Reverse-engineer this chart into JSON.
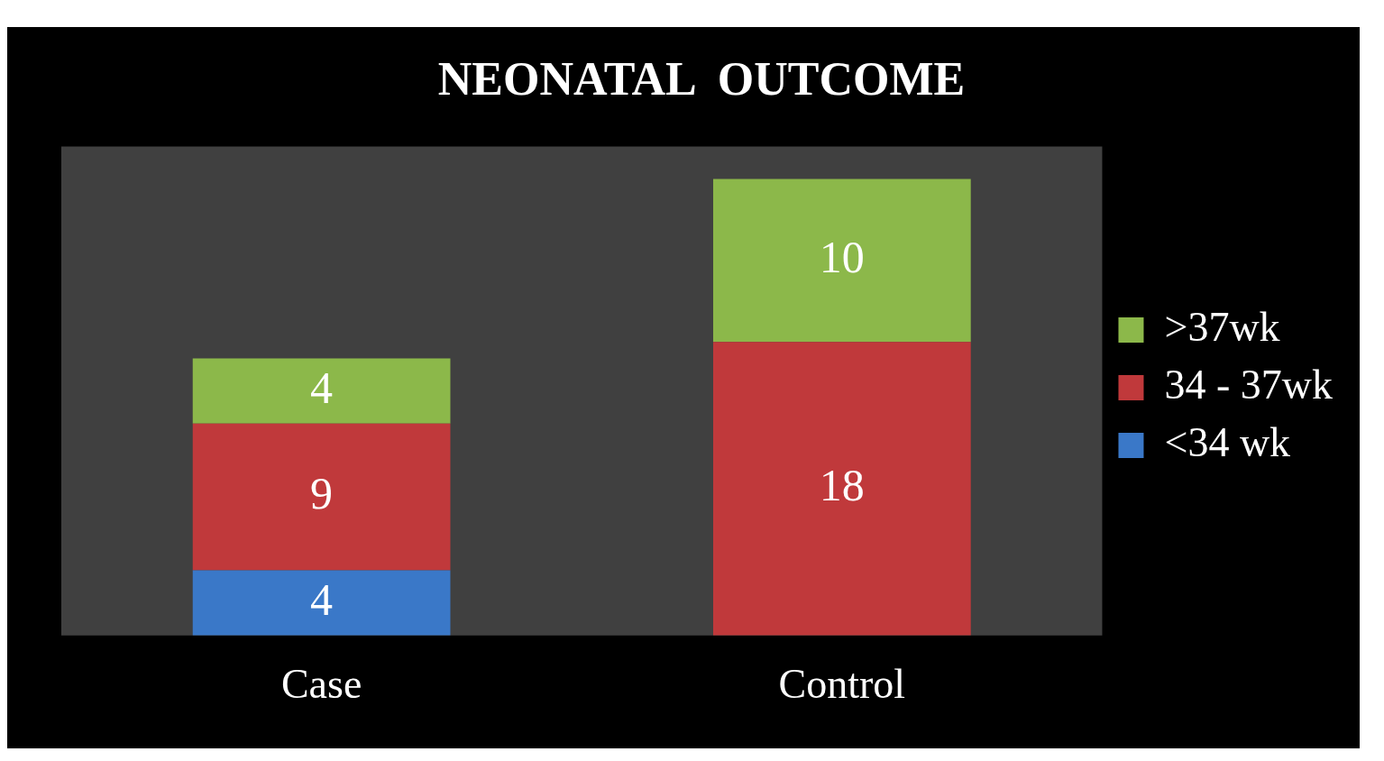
{
  "chart_data": {
    "type": "bar",
    "title": "NEONATAL  OUTCOME",
    "categories": [
      "Case",
      "Control"
    ],
    "stacked": true,
    "legend": "right",
    "grid": false,
    "series": [
      {
        "name": "<34 wk",
        "color": "#3a78c8",
        "values": [
          4,
          0
        ],
        "value_labels": [
          "4",
          null
        ]
      },
      {
        "name": "34 - 37wk",
        "color": "#c0393b",
        "values": [
          9,
          18
        ],
        "value_labels": [
          "9",
          "18"
        ]
      },
      {
        "name": ">37wk",
        "color": "#8cb84a",
        "values": [
          4,
          10
        ],
        "value_labels": [
          "4",
          "10"
        ]
      }
    ]
  }
}
